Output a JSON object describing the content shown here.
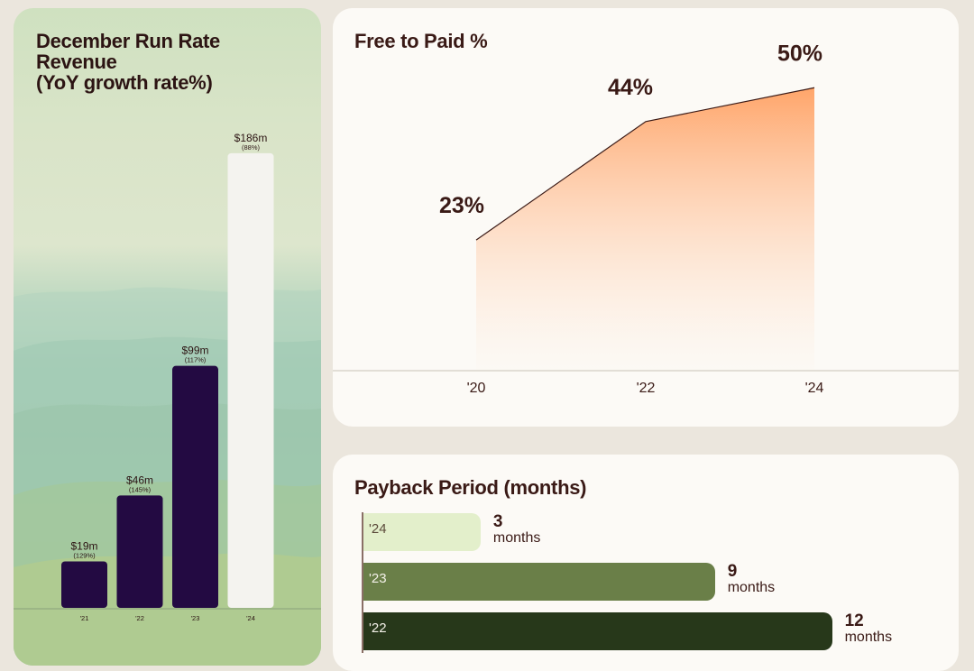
{
  "revenue_panel": {
    "title_lines": [
      "December Run Rate",
      "Revenue",
      "(YoY growth rate%)"
    ]
  },
  "free_to_paid_panel": {
    "title": "Free to Paid %"
  },
  "payback_panel": {
    "title": "Payback Period (months)"
  },
  "colors": {
    "revenue_bar": "#230a42",
    "revenue_bar_highlight": "#f4f3ef",
    "area_top": "#ffa56a",
    "payback_24": "#e3efcb",
    "payback_23": "#6a7f48",
    "payback_22": "#27381a"
  },
  "chart_data": [
    {
      "type": "bar",
      "title": "December Run Rate Revenue (YoY growth rate%)",
      "categories": [
        "'21",
        "'22",
        "'23",
        "'24"
      ],
      "values": [
        19,
        46,
        99,
        186
      ],
      "value_labels": [
        "$19m",
        "$46m",
        "$99m",
        "$186m"
      ],
      "growth_labels": [
        "(129%)",
        "(145%)",
        "(117%)",
        "(88%)"
      ],
      "unit": "$m",
      "ylim": [
        0,
        190
      ]
    },
    {
      "type": "area",
      "title": "Free to Paid %",
      "x": [
        "'20",
        "'22",
        "'24"
      ],
      "values": [
        23,
        44,
        50
      ],
      "value_labels": [
        "23%",
        "44%",
        "50%"
      ],
      "ylim": [
        0,
        55
      ]
    },
    {
      "type": "bar",
      "orientation": "horizontal",
      "title": "Payback Period (months)",
      "categories": [
        "'24",
        "'23",
        "'22"
      ],
      "values": [
        3,
        9,
        12
      ],
      "unit_label": "months",
      "xlim": [
        0,
        13
      ]
    }
  ]
}
